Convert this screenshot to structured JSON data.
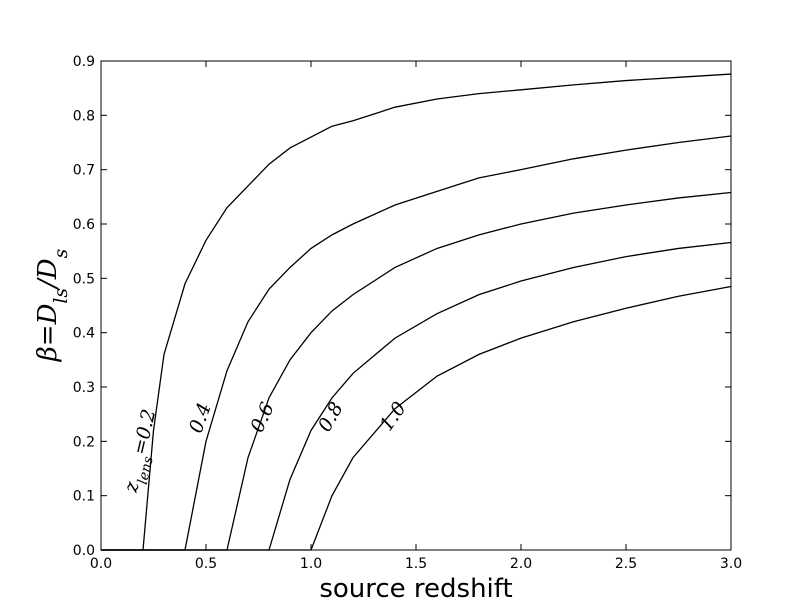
{
  "chart_data": {
    "type": "line",
    "xlabel": "source redshift",
    "ylabel": "β=D_ls/D_s",
    "x": [
      0,
      0.2,
      0.25,
      0.3,
      0.4,
      0.5,
      0.6,
      0.7,
      0.8,
      0.9,
      1.0,
      1.1,
      1.2,
      1.4,
      1.6,
      1.8,
      2.0,
      2.25,
      2.5,
      2.75,
      3.0
    ],
    "series": [
      {
        "name": "z_lens=0.2",
        "color": "#000000",
        "values": [
          0,
          0,
          0.22,
          0.36,
          0.49,
          0.57,
          0.63,
          0.67,
          0.71,
          0.74,
          0.76,
          0.78,
          0.79,
          0.815,
          0.83,
          0.84,
          0.847,
          0.856,
          0.864,
          0.87,
          0.876
        ]
      },
      {
        "name": "0.4",
        "color": "#000000",
        "values": [
          0,
          0,
          0,
          0,
          0,
          0.2,
          0.33,
          0.42,
          0.48,
          0.52,
          0.555,
          0.58,
          0.6,
          0.635,
          0.66,
          0.685,
          0.7,
          0.72,
          0.736,
          0.75,
          0.762
        ]
      },
      {
        "name": "0.6",
        "color": "#000000",
        "values": [
          0,
          0,
          0,
          0,
          0,
          0,
          0,
          0.17,
          0.28,
          0.35,
          0.4,
          0.44,
          0.47,
          0.52,
          0.555,
          0.58,
          0.6,
          0.62,
          0.635,
          0.648,
          0.658
        ]
      },
      {
        "name": "0.8",
        "color": "#000000",
        "values": [
          0,
          0,
          0,
          0,
          0,
          0,
          0,
          0,
          0,
          0.13,
          0.22,
          0.28,
          0.325,
          0.39,
          0.435,
          0.47,
          0.495,
          0.52,
          0.54,
          0.555,
          0.566
        ]
      },
      {
        "name": "1.0",
        "color": "#000000",
        "values": [
          0,
          0,
          0,
          0,
          0,
          0,
          0,
          0,
          0,
          0,
          0,
          0.1,
          0.17,
          0.26,
          0.32,
          0.36,
          0.39,
          0.42,
          0.445,
          0.467,
          0.485
        ]
      }
    ],
    "xlim": [
      0,
      3
    ],
    "ylim": [
      0,
      0.9
    ],
    "xticks": [
      {
        "value": 0,
        "label": "0.0"
      },
      0.5,
      {
        "value": 1,
        "label": "1.0"
      },
      1.5,
      {
        "value": 2,
        "label": "2.0"
      },
      2.5,
      {
        "value": 3,
        "label": "3.0"
      }
    ],
    "yticks": [
      {
        "value": 0,
        "label": "0.0"
      },
      0.1,
      0.2,
      0.3,
      0.4,
      0.5,
      0.6,
      0.7,
      0.8,
      0.9
    ],
    "grid": false
  }
}
